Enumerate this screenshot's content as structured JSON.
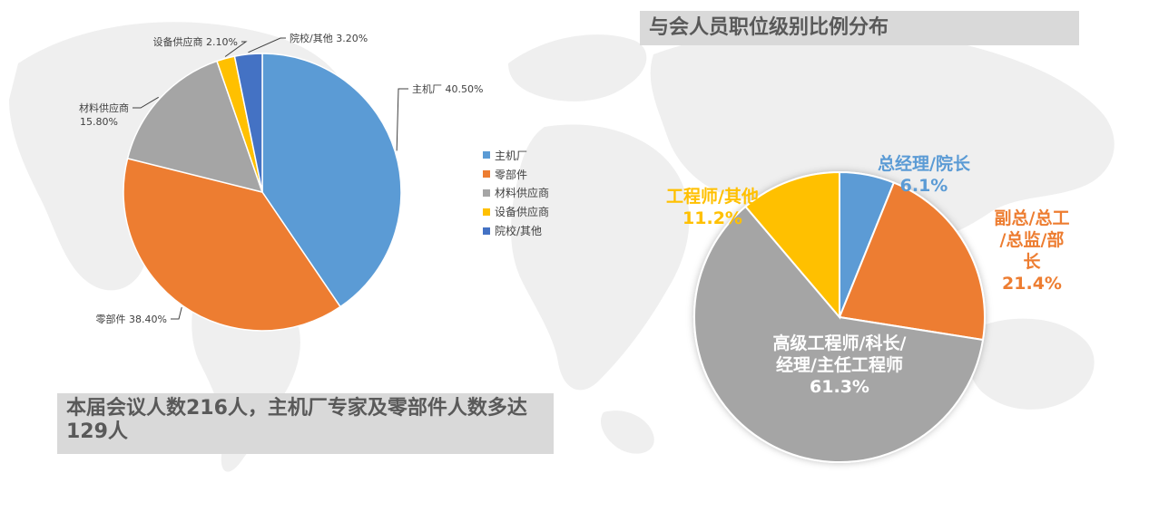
{
  "caption": "本届会议人数216人，主机厂专家及零部件人数多达129人",
  "chart_data": [
    {
      "type": "pie",
      "title": "",
      "start_angle_deg": 0,
      "slices": [
        {
          "name": "主机厂",
          "value": 40.5,
          "label_text": "主机厂 40.50%",
          "color": "#5b9bd5",
          "label_side": "right"
        },
        {
          "name": "零部件",
          "value": 38.4,
          "label_text": "零部件 38.40%",
          "color": "#ed7d31",
          "label_side": "left"
        },
        {
          "name": "材料供应商",
          "value": 15.8,
          "label_text": "材料供应商\n15.80%",
          "color": "#a5a5a5",
          "label_side": "left"
        },
        {
          "name": "设备供应商",
          "value": 2.1,
          "label_text": "设备供应商 2.10%",
          "color": "#ffc000",
          "label_side": "left"
        },
        {
          "name": "院校/其他",
          "value": 3.2,
          "label_text": "院校/其他 3.20%",
          "color": "#4472c4",
          "label_side": "right"
        }
      ],
      "legend": {
        "position": "right",
        "entries": [
          "主机厂",
          "零部件",
          "材料供应商",
          "设备供应商",
          "院校/其他"
        ]
      }
    },
    {
      "type": "pie",
      "title": "与会人员职位级别比例分布",
      "start_angle_deg": 0,
      "slices": [
        {
          "name": "总经理/院长",
          "value": 6.1,
          "label_lines": [
            "总经理/院长",
            "6.1%"
          ],
          "color": "#5b9bd5",
          "label_color": "#5b9bd5"
        },
        {
          "name": "副总/总工/总监/部长",
          "value": 21.4,
          "label_lines": [
            "副总/总工",
            "/总监/部",
            "长",
            "21.4%"
          ],
          "color": "#ed7d31",
          "label_color": "#ed7d31"
        },
        {
          "name": "高级工程师/科长/经理/主任工程师",
          "value": 61.3,
          "label_lines": [
            "高级工程师/科长/",
            "经理/主任工程师",
            "61.3%"
          ],
          "color": "#a5a5a5",
          "label_color": "#ffffff"
        },
        {
          "name": "工程师/其他",
          "value": 11.2,
          "label_lines": [
            "工程师/其他",
            "11.2%"
          ],
          "color": "#ffc000",
          "label_color": "#ffc000"
        }
      ],
      "legend": {
        "position": "none"
      }
    }
  ]
}
